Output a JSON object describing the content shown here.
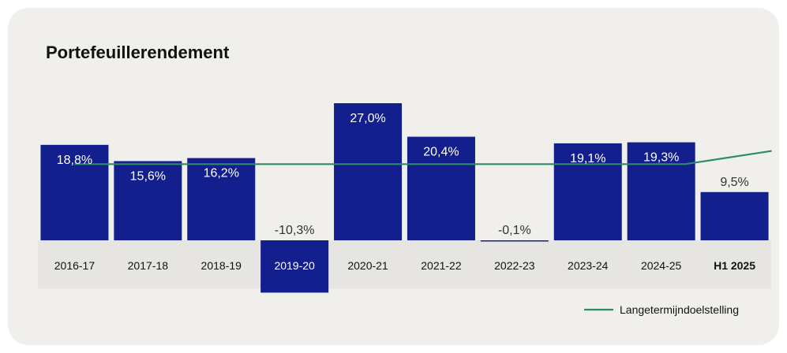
{
  "page_title": "Portefeuillerendement",
  "chart_data": {
    "type": "bar",
    "title": "Portefeuillerendement",
    "categories": [
      "2016-17",
      "2017-18",
      "2018-19",
      "2019-20",
      "2020-21",
      "2021-22",
      "2022-23",
      "2023-24",
      "2024-25",
      "H1 2025"
    ],
    "bold_categories": [
      "H1 2025"
    ],
    "values": [
      18.8,
      15.6,
      16.2,
      -10.3,
      27.0,
      20.4,
      -0.1,
      19.1,
      19.3,
      9.5
    ],
    "value_labels": [
      "18,8%",
      "15,6%",
      "16,2%",
      "-10,3%",
      "27,0%",
      "20,4%",
      "-0,1%",
      "19,1%",
      "19,3%",
      "9,5%"
    ],
    "ylim": [
      -10.3,
      27.0
    ],
    "grid": false,
    "line_series": {
      "name": "Langetermijndoelstelling",
      "values": [
        15.0,
        15.0,
        15.0,
        15.0,
        15.0,
        15.0,
        15.0,
        15.0,
        15.0,
        17.6
      ]
    },
    "legend_position": "bottom-right",
    "colors": {
      "bar": "#131f8d",
      "line": "#2e8b67",
      "background": "#f0efeb",
      "label_dark": "#333333",
      "label_light": "#ffffff"
    }
  }
}
